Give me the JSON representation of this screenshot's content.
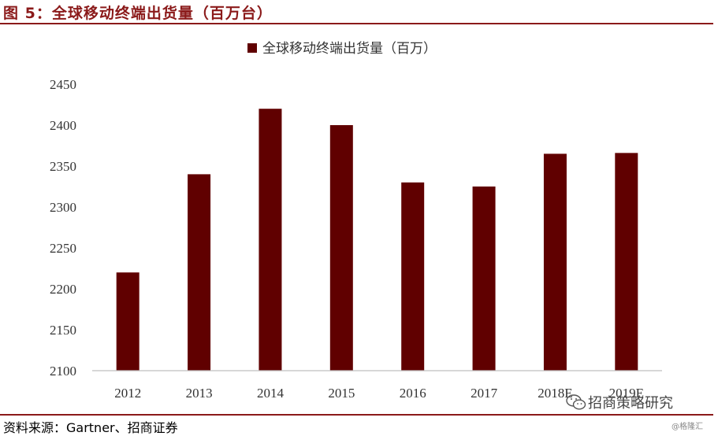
{
  "figure_title": "图 5：全球移动终端出货量（百万台）",
  "source_note": "资料来源：Gartner、招商证券",
  "watermark": "招商策略研究",
  "credit": "@格隆汇",
  "colors": {
    "bar": "#600000",
    "rule": "#8b1a1a",
    "axis": "#bfbfbf"
  },
  "chart_data": {
    "type": "bar",
    "categories": [
      "2012",
      "2013",
      "2014",
      "2015",
      "2016",
      "2017",
      "2018E",
      "2019E"
    ],
    "series": [
      {
        "name": "全球移动终端出货量（百万）",
        "values": [
          2220,
          2340,
          2420,
          2400,
          2330,
          2325,
          2365,
          2366
        ]
      }
    ],
    "ylim": [
      2100,
      2450
    ],
    "yticks": [
      2100,
      2150,
      2200,
      2250,
      2300,
      2350,
      2400,
      2450
    ],
    "grid": false,
    "legend_position": "top-center"
  }
}
